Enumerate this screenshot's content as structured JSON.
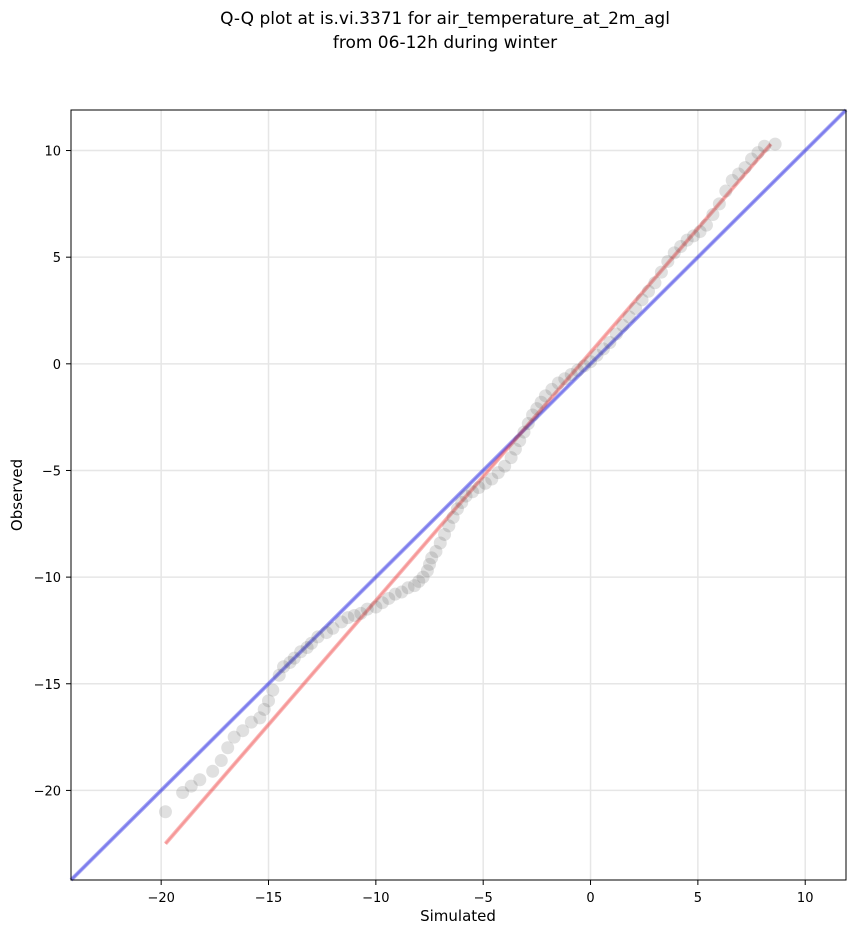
{
  "chart_data": {
    "type": "scatter",
    "title": "Q-Q plot at is.vi.3371 for air_temperature_at_2m_agl",
    "subtitle": "from 06-12h during winter",
    "xlabel": "Simulated",
    "ylabel": "Observed",
    "xlim": [
      -24.2,
      11.9
    ],
    "ylim": [
      -24.2,
      11.9
    ],
    "xticks": [
      -20,
      -15,
      -10,
      -5,
      0,
      5,
      10
    ],
    "yticks": [
      -20,
      -15,
      -10,
      -5,
      0,
      5,
      10
    ],
    "xtick_labels": [
      "−20",
      "−15",
      "−10",
      "−5",
      "0",
      "5",
      "10"
    ],
    "ytick_labels": [
      "−20",
      "−15",
      "−10",
      "−5",
      "0",
      "5",
      "10"
    ],
    "grid": true,
    "lines": [
      {
        "role": "one-to-one reference",
        "color": "#0000dd",
        "x": [
          -24.2,
          11.9
        ],
        "y": [
          -24.2,
          11.9
        ]
      },
      {
        "role": "quantile fit",
        "color": "#ee3333",
        "x": [
          -19.8,
          8.4
        ],
        "y": [
          -22.5,
          10.3
        ]
      }
    ],
    "series": [
      {
        "marker_color": "#555555",
        "points": [
          [
            -19.8,
            -21.0
          ],
          [
            -19.0,
            -20.1
          ],
          [
            -18.6,
            -19.8
          ],
          [
            -18.2,
            -19.5
          ],
          [
            -17.6,
            -19.1
          ],
          [
            -17.2,
            -18.6
          ],
          [
            -16.9,
            -18.0
          ],
          [
            -16.6,
            -17.5
          ],
          [
            -16.2,
            -17.2
          ],
          [
            -15.8,
            -16.8
          ],
          [
            -15.4,
            -16.6
          ],
          [
            -15.2,
            -16.2
          ],
          [
            -15.0,
            -15.8
          ],
          [
            -14.8,
            -15.3
          ],
          [
            -14.5,
            -14.6
          ],
          [
            -14.3,
            -14.2
          ],
          [
            -14.0,
            -14.0
          ],
          [
            -13.8,
            -13.8
          ],
          [
            -13.5,
            -13.5
          ],
          [
            -13.2,
            -13.3
          ],
          [
            -13.0,
            -13.1
          ],
          [
            -12.7,
            -12.8
          ],
          [
            -12.3,
            -12.6
          ],
          [
            -12.0,
            -12.4
          ],
          [
            -11.6,
            -12.1
          ],
          [
            -11.3,
            -11.9
          ],
          [
            -11.0,
            -11.8
          ],
          [
            -10.7,
            -11.7
          ],
          [
            -10.4,
            -11.5
          ],
          [
            -10.0,
            -11.4
          ],
          [
            -9.7,
            -11.2
          ],
          [
            -9.4,
            -11.0
          ],
          [
            -9.1,
            -10.8
          ],
          [
            -8.8,
            -10.7
          ],
          [
            -8.5,
            -10.5
          ],
          [
            -8.2,
            -10.4
          ],
          [
            -8.0,
            -10.2
          ],
          [
            -7.8,
            -10.0
          ],
          [
            -7.6,
            -9.7
          ],
          [
            -7.5,
            -9.4
          ],
          [
            -7.4,
            -9.1
          ],
          [
            -7.2,
            -8.8
          ],
          [
            -7.0,
            -8.4
          ],
          [
            -6.8,
            -8.0
          ],
          [
            -6.6,
            -7.6
          ],
          [
            -6.4,
            -7.2
          ],
          [
            -6.2,
            -6.8
          ],
          [
            -6.0,
            -6.5
          ],
          [
            -5.8,
            -6.2
          ],
          [
            -5.5,
            -6.0
          ],
          [
            -5.2,
            -5.8
          ],
          [
            -4.9,
            -5.6
          ],
          [
            -4.6,
            -5.4
          ],
          [
            -4.3,
            -5.1
          ],
          [
            -4.0,
            -4.8
          ],
          [
            -3.7,
            -4.4
          ],
          [
            -3.5,
            -4.0
          ],
          [
            -3.3,
            -3.6
          ],
          [
            -3.1,
            -3.2
          ],
          [
            -2.9,
            -2.8
          ],
          [
            -2.7,
            -2.4
          ],
          [
            -2.5,
            -2.1
          ],
          [
            -2.3,
            -1.8
          ],
          [
            -2.1,
            -1.5
          ],
          [
            -1.8,
            -1.2
          ],
          [
            -1.5,
            -0.9
          ],
          [
            -1.2,
            -0.7
          ],
          [
            -0.9,
            -0.5
          ],
          [
            -0.6,
            -0.3
          ],
          [
            -0.3,
            -0.1
          ],
          [
            0.0,
            0.1
          ],
          [
            0.3,
            0.4
          ],
          [
            0.6,
            0.7
          ],
          [
            0.9,
            1.0
          ],
          [
            1.2,
            1.4
          ],
          [
            1.5,
            1.8
          ],
          [
            1.8,
            2.2
          ],
          [
            2.1,
            2.6
          ],
          [
            2.4,
            3.0
          ],
          [
            2.7,
            3.4
          ],
          [
            3.0,
            3.8
          ],
          [
            3.3,
            4.3
          ],
          [
            3.6,
            4.8
          ],
          [
            3.9,
            5.2
          ],
          [
            4.2,
            5.5
          ],
          [
            4.5,
            5.8
          ],
          [
            4.8,
            6.0
          ],
          [
            5.1,
            6.2
          ],
          [
            5.4,
            6.5
          ],
          [
            5.7,
            7.0
          ],
          [
            6.0,
            7.5
          ],
          [
            6.3,
            8.1
          ],
          [
            6.6,
            8.6
          ],
          [
            6.9,
            8.9
          ],
          [
            7.2,
            9.2
          ],
          [
            7.5,
            9.6
          ],
          [
            7.8,
            9.9
          ],
          [
            8.1,
            10.2
          ],
          [
            8.6,
            10.3
          ]
        ]
      }
    ]
  }
}
